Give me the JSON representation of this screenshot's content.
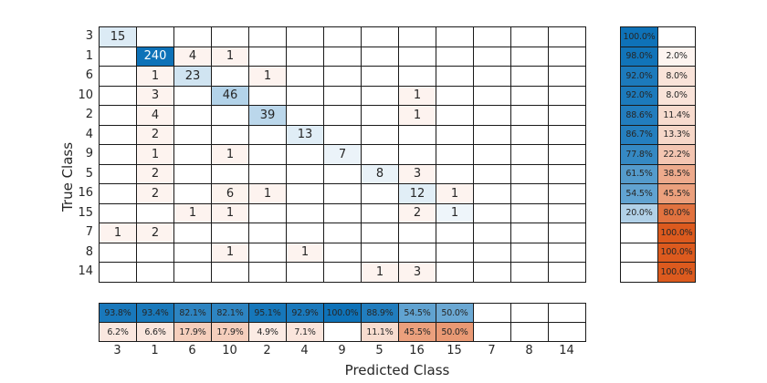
{
  "chart_data": {
    "type": "heatmap",
    "subtype": "confusion-matrix",
    "xlabel": "Predicted Class",
    "ylabel": "True Class",
    "classes": [
      "3",
      "1",
      "6",
      "10",
      "2",
      "4",
      "9",
      "5",
      "16",
      "15",
      "7",
      "8",
      "14"
    ],
    "matrix": [
      [
        15,
        0,
        0,
        0,
        0,
        0,
        0,
        0,
        0,
        0,
        0,
        0,
        0
      ],
      [
        0,
        240,
        4,
        1,
        0,
        0,
        0,
        0,
        0,
        0,
        0,
        0,
        0
      ],
      [
        0,
        1,
        23,
        0,
        1,
        0,
        0,
        0,
        0,
        0,
        0,
        0,
        0
      ],
      [
        0,
        3,
        0,
        46,
        0,
        0,
        0,
        0,
        1,
        0,
        0,
        0,
        0
      ],
      [
        0,
        4,
        0,
        0,
        39,
        0,
        0,
        0,
        1,
        0,
        0,
        0,
        0
      ],
      [
        0,
        2,
        0,
        0,
        0,
        13,
        0,
        0,
        0,
        0,
        0,
        0,
        0
      ],
      [
        0,
        1,
        0,
        1,
        0,
        0,
        7,
        0,
        0,
        0,
        0,
        0,
        0
      ],
      [
        0,
        2,
        0,
        0,
        0,
        0,
        0,
        8,
        3,
        0,
        0,
        0,
        0
      ],
      [
        0,
        2,
        0,
        6,
        1,
        0,
        0,
        0,
        12,
        1,
        0,
        0,
        0
      ],
      [
        0,
        0,
        1,
        1,
        0,
        0,
        0,
        0,
        2,
        1,
        0,
        0,
        0
      ],
      [
        1,
        2,
        0,
        0,
        0,
        0,
        0,
        0,
        0,
        0,
        0,
        0,
        0
      ],
      [
        0,
        0,
        0,
        1,
        0,
        1,
        0,
        0,
        0,
        0,
        0,
        0,
        0
      ],
      [
        0,
        0,
        0,
        0,
        0,
        0,
        0,
        1,
        3,
        0,
        0,
        0,
        0
      ]
    ],
    "row_summary": {
      "correct": [
        "100.0%",
        "98.0%",
        "92.0%",
        "92.0%",
        "88.6%",
        "86.7%",
        "77.8%",
        "61.5%",
        "54.5%",
        "20.0%",
        "",
        "",
        ""
      ],
      "incorrect": [
        "",
        "2.0%",
        "8.0%",
        "8.0%",
        "11.4%",
        "13.3%",
        "22.2%",
        "38.5%",
        "45.5%",
        "80.0%",
        "100.0%",
        "100.0%",
        "100.0%"
      ]
    },
    "col_summary": {
      "correct": [
        "93.8%",
        "93.4%",
        "82.1%",
        "82.1%",
        "95.1%",
        "92.9%",
        "100.0%",
        "88.9%",
        "54.5%",
        "50.0%",
        "",
        "",
        ""
      ],
      "incorrect": [
        "6.2%",
        "6.6%",
        "17.9%",
        "17.9%",
        "4.9%",
        "7.1%",
        "",
        "11.1%",
        "45.5%",
        "50.0%",
        "",
        "",
        ""
      ]
    },
    "colors": {
      "diagonal_blue": "#0e72b8",
      "off_diagonal_orange": "#dc5a1e",
      "grid_line": "#1a1a1a",
      "text_dark": "#262626",
      "text_light": "#ffffff",
      "background": "#ffffff"
    },
    "layout": {
      "grid": "on",
      "row_summary_position": "right",
      "column_summary_position": "bottom"
    }
  }
}
